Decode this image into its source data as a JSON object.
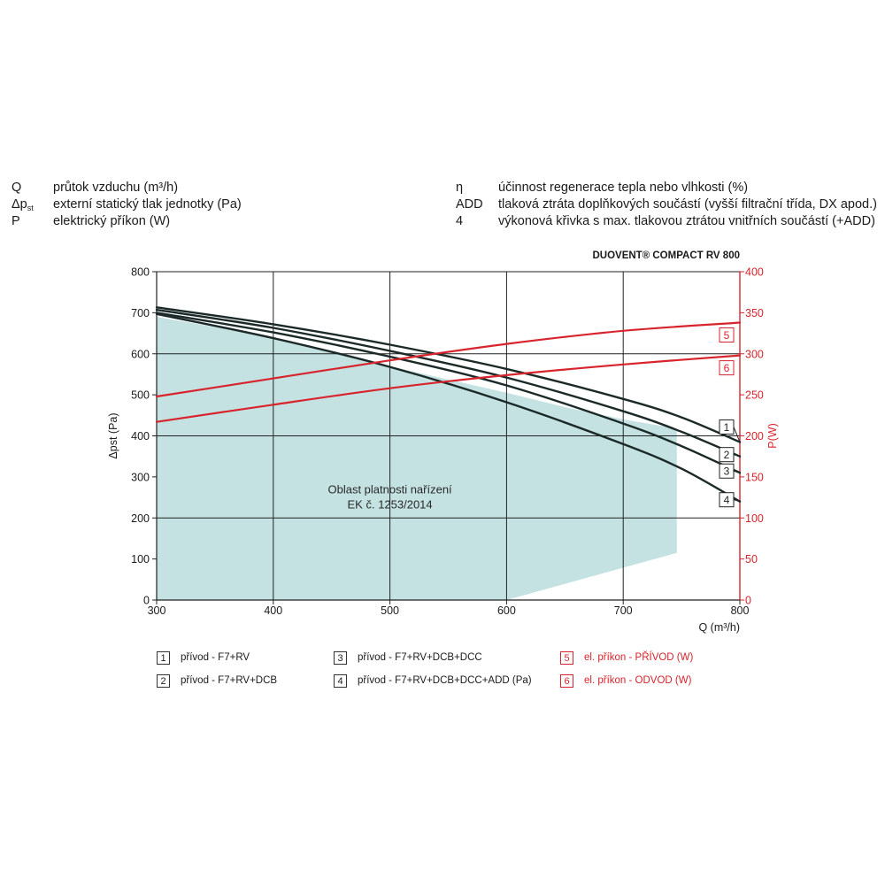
{
  "definitions": {
    "left": [
      {
        "symbol": "Q",
        "text": "průtok vzduchu (m³/h)"
      },
      {
        "symbol": "Δp",
        "symbol_sub": "st",
        "text": "externí statický tlak jednotky (Pa)"
      },
      {
        "symbol": "P",
        "text": "elektrický příkon (W)"
      }
    ],
    "right": [
      {
        "symbol": "η",
        "text": "účinnost regenerace tepla nebo vlhkosti (%)"
      },
      {
        "symbol": "ADD",
        "text": "tlaková ztráta doplňkových součástí (vyšší filtrační třída, DX apod.)"
      },
      {
        "symbol": "4",
        "text": "výkonová křivka s max. tlakovou ztrátou vnitřních součástí (+ADD)"
      }
    ]
  },
  "chart_data": {
    "type": "line",
    "title": "DUOVENT® COMPACT RV 800",
    "xlabel": "Q (m³/h)",
    "ylabel": "Δpst (Pa)",
    "y2label": "P(W)",
    "xlim": [
      300,
      800
    ],
    "ylim": [
      0,
      800
    ],
    "y2lim": [
      0,
      400
    ],
    "x_ticks": [
      "300",
      "400",
      "500",
      "600",
      "700",
      "800"
    ],
    "y_ticks": [
      "0",
      "100",
      "200",
      "300",
      "400",
      "500",
      "600",
      "700",
      "800"
    ],
    "y2_ticks": [
      "0",
      "50",
      "100",
      "150",
      "200",
      "250",
      "300",
      "350",
      "400"
    ],
    "grid": true,
    "colors": {
      "pressure": "#1b2a28",
      "power": "#d8242c",
      "region": "#c5e2e2",
      "grid": "#222222"
    },
    "region": {
      "label_line1": "Oblast platnosti nařízení",
      "label_line2": "EK č. 1253/2014",
      "polygon": [
        [
          300,
          0
        ],
        [
          300,
          690
        ],
        [
          400,
          640
        ],
        [
          500,
          570
        ],
        [
          600,
          505
        ],
        [
          650,
          470
        ],
        [
          700,
          440
        ],
        [
          746,
          418
        ],
        [
          746,
          115
        ],
        [
          600,
          0
        ]
      ]
    },
    "pressure_series": [
      {
        "label": "1",
        "x": [
          300,
          400,
          500,
          600,
          700,
          750,
          800
        ],
        "y": [
          713,
          672,
          622,
          563,
          490,
          445,
          385
        ]
      },
      {
        "label": "2",
        "x": [
          300,
          400,
          500,
          600,
          700,
          750,
          800
        ],
        "y": [
          707,
          663,
          607,
          542,
          460,
          410,
          350
        ]
      },
      {
        "label": "3",
        "x": [
          300,
          400,
          500,
          600,
          700,
          750,
          800
        ],
        "y": [
          700,
          652,
          593,
          523,
          430,
          375,
          310
        ]
      },
      {
        "label": "4",
        "x": [
          300,
          400,
          500,
          600,
          700,
          750,
          800
        ],
        "y": [
          697,
          638,
          568,
          482,
          380,
          320,
          240
        ]
      }
    ],
    "power_series": [
      {
        "label": "5",
        "x": [
          300,
          400,
          500,
          600,
          700,
          800
        ],
        "y": [
          248,
          270,
          292,
          312,
          328,
          338
        ]
      },
      {
        "label": "6",
        "x": [
          300,
          400,
          500,
          600,
          700,
          800
        ],
        "y": [
          217,
          238,
          258,
          274,
          287,
          298
        ]
      }
    ],
    "legend": [
      {
        "num": "1",
        "text": "přívod - F7+RV",
        "color": "black"
      },
      {
        "num": "2",
        "text": "přívod - F7+RV+DCB",
        "color": "black"
      },
      {
        "num": "3",
        "text": "přívod - F7+RV+DCB+DCC",
        "color": "black"
      },
      {
        "num": "4",
        "text": "přívod - F7+RV+DCB+DCC+ADD (Pa)",
        "color": "black"
      },
      {
        "num": "5",
        "text": "el. příkon - PŘÍVOD (W)",
        "color": "red"
      },
      {
        "num": "6",
        "text": "el. příkon - ODVOD (W)",
        "color": "red"
      }
    ]
  }
}
